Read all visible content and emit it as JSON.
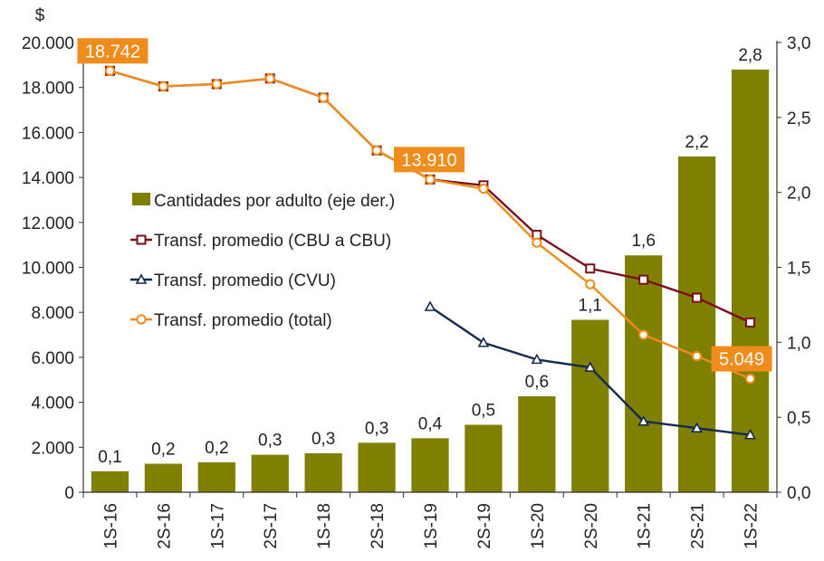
{
  "chart_data": {
    "type": "bar+line",
    "categories": [
      "1S-16",
      "2S-16",
      "1S-17",
      "2S-17",
      "1S-18",
      "2S-18",
      "1S-19",
      "2S-19",
      "1S-20",
      "2S-20",
      "1S-21",
      "2S-21",
      "1S-22"
    ],
    "bars": {
      "name": "Cantidades por adulto (eje der.)",
      "axis": "right",
      "values": [
        0.14,
        0.19,
        0.2,
        0.25,
        0.26,
        0.33,
        0.36,
        0.45,
        0.64,
        1.15,
        1.58,
        2.24,
        2.82
      ],
      "data_labels": [
        "0,1",
        "0,2",
        "0,2",
        "0,3",
        "0,3",
        "0,3",
        "0,4",
        "0,5",
        "0,6",
        "1,1",
        "1,6",
        "2,2",
        "2,8"
      ],
      "color": "#7f7f00"
    },
    "series": [
      {
        "name": "Transf. promedio (CBU a CBU)",
        "axis": "left",
        "marker": "square",
        "color": "#7b0f1a",
        "values": [
          18742,
          18050,
          18150,
          18400,
          17550,
          15200,
          13910,
          13650,
          11450,
          9950,
          9450,
          8650,
          7550
        ]
      },
      {
        "name": "Transf. promedio (CVU)",
        "axis": "left",
        "marker": "triangle",
        "color": "#142a4f",
        "values": [
          null,
          null,
          null,
          null,
          null,
          null,
          8250,
          6650,
          5900,
          5550,
          3150,
          2850,
          2550
        ]
      },
      {
        "name": "Transf. promedio (total)",
        "axis": "left",
        "marker": "circle",
        "color": "#ef8c1c",
        "values": [
          18742,
          18050,
          18150,
          18400,
          17550,
          15200,
          13910,
          13500,
          11100,
          9250,
          7000,
          6050,
          5049
        ]
      }
    ],
    "callouts": [
      {
        "text": "18.742",
        "category": "1S-16"
      },
      {
        "text": "13.910",
        "category": "1S-19"
      },
      {
        "text": "5.049",
        "category": "1S-22"
      }
    ],
    "left_axis": {
      "label": "$",
      "ylim": [
        0,
        20000
      ],
      "ticks": [
        0,
        2000,
        4000,
        6000,
        8000,
        10000,
        12000,
        14000,
        16000,
        18000,
        20000
      ],
      "tick_labels": [
        "0",
        "2.000",
        "4.000",
        "6.000",
        "8.000",
        "10.000",
        "12.000",
        "14.000",
        "16.000",
        "18.000",
        "20.000"
      ]
    },
    "right_axis": {
      "ylim": [
        0,
        3.0
      ],
      "ticks": [
        0,
        0.5,
        1.0,
        1.5,
        2.0,
        2.5,
        3.0
      ],
      "tick_labels": [
        "0,0",
        "0,5",
        "1,0",
        "1,5",
        "2,0",
        "2,5",
        "3,0"
      ]
    },
    "grid": false,
    "legend_position": "center-left",
    "callout_color": "#ef8c1c"
  }
}
